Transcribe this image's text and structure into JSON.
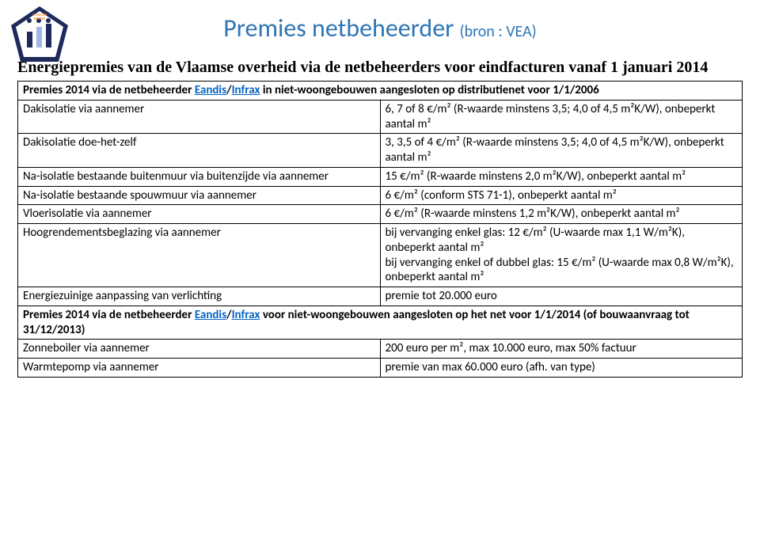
{
  "title_main": "Premies netbeheerder ",
  "title_sub": "(bron : VEA)",
  "subtitle": "Energiepremies van de Vlaamse overheid via de netbeheerders voor eindfacturen vanaf 1 januari 2014",
  "section1_prefix": "Premies 2014 via de netbeheerder ",
  "eandis": "Eandis",
  "slash": "/",
  "infrax": "Infrax",
  "section1_suffix": " in niet-woongebouwen aangesloten op distributienet voor 1/1/2006",
  "rows1": [
    {
      "l": "Dakisolatie via aannemer",
      "r": "6, 7 of 8 €/m² (R-waarde minstens 3,5; 4,0 of 4,5 m²K/W), onbeperkt aantal m²"
    },
    {
      "l": "Dakisolatie doe-het-zelf",
      "r": "3, 3,5 of 4 €/m² (R-waarde minstens 3,5; 4,0 of 4,5 m²K/W), onbeperkt aantal m²"
    },
    {
      "l": "Na-isolatie bestaande buitenmuur via buitenzijde via aannemer",
      "r": "15 €/m² (R-waarde minstens 2,0 m²K/W), onbeperkt aantal m²"
    },
    {
      "l": "Na-isolatie bestaande spouwmuur via aannemer",
      "r": "6 €/m² (conform STS 71-1), onbeperkt aantal m²"
    },
    {
      "l": "Vloerisolatie via aannemer",
      "r": "6 €/m² (R-waarde minstens 1,2 m²K/W), onbeperkt aantal m²"
    },
    {
      "l": "Hoogrendementsbeglazing via aannemer",
      "r": "bij vervanging enkel glas: 12 €/m²  (U-waarde max 1,1 W/m²K), onbeperkt aantal m²\nbij vervanging enkel of dubbel glas: 15 €/m² (U-waarde max 0,8 W/m²K), onbeperkt aantal m²"
    },
    {
      "l": "Energiezuinige aanpassing van verlichting",
      "r": "premie tot 20.000 euro"
    }
  ],
  "section2_prefix": "Premies 2014 via de netbeheerder  ",
  "section2_suffix": "  voor niet-woongebouwen aangesloten op het net voor 1/1/2014 (of bouwaanvraag tot 31/12/2013)",
  "rows2": [
    {
      "l": "Zonneboiler via aannemer",
      "r": "200 euro per m², max 10.000 euro, max 50% factuur"
    },
    {
      "l": "Warmtepomp via aannemer",
      "r": "premie van max 60.000 euro (afh. van type)"
    }
  ],
  "colors": {
    "title": "#2e75b6",
    "link": "#0563c1",
    "border": "#000000",
    "text": "#000000",
    "logo_navy": "#1d2a5b",
    "logo_orange": "#f28c28",
    "logo_light": "#9eb7e5"
  }
}
